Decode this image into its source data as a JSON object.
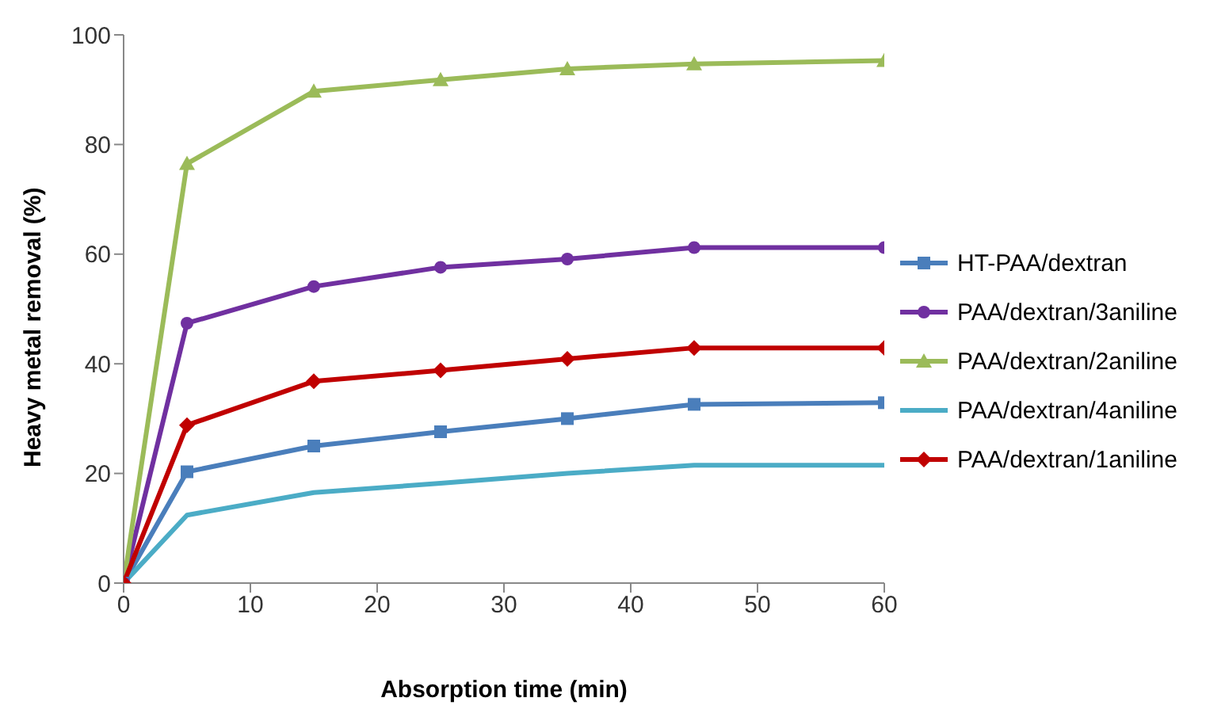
{
  "chart_data": {
    "type": "line",
    "xlabel": "Absorption time (min)",
    "ylabel": "Heavy metal removal (%)",
    "x": [
      0,
      5,
      15,
      25,
      35,
      45,
      60
    ],
    "xlim": [
      0,
      60
    ],
    "xticks": [
      0,
      10,
      20,
      30,
      40,
      50,
      60
    ],
    "ylim": [
      0,
      100
    ],
    "yticks": [
      0,
      20,
      40,
      60,
      80,
      100
    ],
    "legend": "right",
    "series": [
      {
        "name": "HT-PAA/dextran",
        "color": "#4a7ebb",
        "marker": "square",
        "values": [
          0,
          20.3,
          25,
          27.6,
          30,
          32.6,
          32.9
        ]
      },
      {
        "name": "PAA/dextran/3aniline",
        "color": "#7030a0",
        "marker": "circle",
        "values": [
          0,
          47.4,
          54.1,
          57.6,
          59.1,
          61.2,
          61.2
        ]
      },
      {
        "name": "PAA/dextran/2aniline",
        "color": "#9bbb59",
        "marker": "triangle",
        "values": [
          0,
          76.5,
          89.7,
          91.8,
          93.8,
          94.7,
          95.3
        ]
      },
      {
        "name": "PAA/dextran/4aniline",
        "color": "#4bacc6",
        "marker": "none",
        "values": [
          0,
          12.4,
          16.5,
          18.2,
          20,
          21.5,
          21.5
        ]
      },
      {
        "name": "PAA/dextran/1aniline",
        "color": "#c00000",
        "marker": "diamond",
        "values": [
          0,
          28.8,
          36.8,
          38.8,
          40.9,
          42.9,
          42.9
        ]
      }
    ]
  }
}
